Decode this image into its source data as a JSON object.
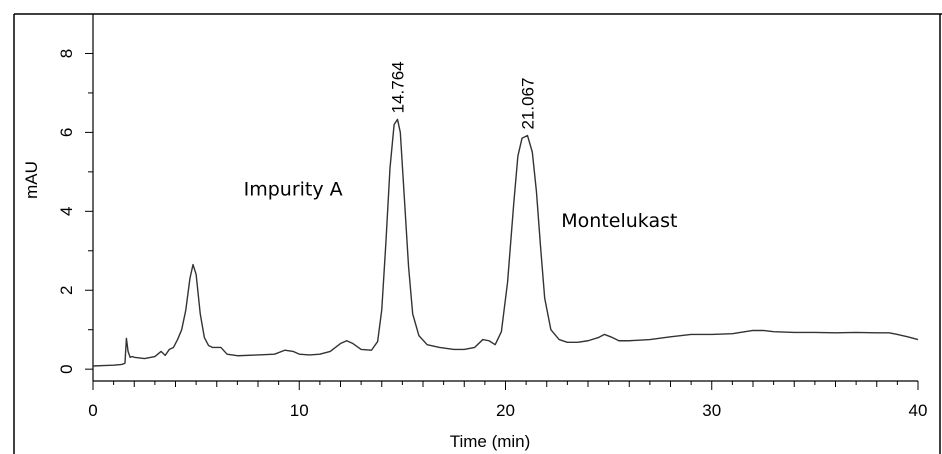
{
  "chart_data": {
    "type": "line",
    "title": "",
    "xlabel": "Time (min)",
    "ylabel": "mAU",
    "xlim": [
      0,
      40
    ],
    "ylim": [
      -0.3,
      9
    ],
    "x_ticks": [
      "0",
      "10",
      "20",
      "30",
      "40"
    ],
    "y_ticks": [
      "0",
      "2",
      "4",
      "6",
      "8"
    ],
    "x_tick_values": [
      0,
      10,
      20,
      30,
      40
    ],
    "y_tick_values": [
      0,
      2,
      4,
      6,
      8
    ],
    "grid": false,
    "line_color": "#333333",
    "peak_labels": [
      {
        "text": "14.764",
        "x": 14.764,
        "y": 6.33
      },
      {
        "text": "21.067",
        "x": 21.067,
        "y": 5.92
      }
    ],
    "annotations": [
      {
        "text": "Impurity A",
        "x": 10.6,
        "y": 4.5
      },
      {
        "text": "Montelukast",
        "x": 26.0,
        "y": 3.7
      }
    ],
    "series": [
      {
        "x": [
          0,
          0.5,
          1.0,
          1.4,
          1.55,
          1.62,
          1.7,
          1.8,
          1.9,
          2.0,
          2.5,
          3.0,
          3.3,
          3.5,
          3.7,
          3.9,
          4.1,
          4.3,
          4.5,
          4.7,
          4.85,
          5.0,
          5.2,
          5.4,
          5.6,
          5.8,
          6.0,
          6.2,
          6.5,
          7.0,
          8.0,
          8.8,
          9.3,
          9.7,
          10.0,
          10.5,
          11.0,
          11.5,
          12.0,
          12.3,
          12.6,
          13.0,
          13.5,
          13.8,
          14.0,
          14.2,
          14.4,
          14.6,
          14.764,
          14.9,
          15.1,
          15.3,
          15.5,
          15.8,
          16.2,
          16.8,
          17.5,
          18.0,
          18.5,
          18.9,
          19.2,
          19.5,
          19.8,
          20.1,
          20.4,
          20.6,
          20.8,
          21.067,
          21.3,
          21.5,
          21.7,
          21.9,
          22.2,
          22.6,
          23.0,
          23.5,
          24.0,
          24.5,
          24.8,
          25.1,
          25.5,
          26.0,
          27.0,
          28.0,
          29.0,
          30.0,
          31.0,
          32.0,
          32.5,
          33.0,
          34.0,
          35.0,
          36.0,
          37.0,
          38.0,
          38.6,
          39.0,
          39.5,
          40.0
        ],
        "y": [
          0.08,
          0.09,
          0.1,
          0.12,
          0.15,
          0.78,
          0.45,
          0.3,
          0.32,
          0.3,
          0.27,
          0.32,
          0.45,
          0.35,
          0.5,
          0.55,
          0.75,
          1.0,
          1.5,
          2.3,
          2.65,
          2.4,
          1.4,
          0.8,
          0.6,
          0.55,
          0.55,
          0.55,
          0.38,
          0.34,
          0.36,
          0.38,
          0.48,
          0.45,
          0.38,
          0.36,
          0.38,
          0.45,
          0.65,
          0.72,
          0.65,
          0.5,
          0.48,
          0.7,
          1.5,
          3.2,
          5.1,
          6.2,
          6.33,
          6.0,
          4.3,
          2.6,
          1.4,
          0.85,
          0.62,
          0.55,
          0.5,
          0.5,
          0.55,
          0.75,
          0.72,
          0.62,
          0.95,
          2.2,
          4.2,
          5.4,
          5.85,
          5.92,
          5.5,
          4.5,
          3.1,
          1.8,
          1.0,
          0.75,
          0.68,
          0.68,
          0.72,
          0.8,
          0.88,
          0.82,
          0.72,
          0.72,
          0.75,
          0.82,
          0.88,
          0.88,
          0.9,
          0.98,
          0.98,
          0.95,
          0.93,
          0.93,
          0.92,
          0.93,
          0.92,
          0.92,
          0.88,
          0.82,
          0.75
        ]
      }
    ]
  }
}
